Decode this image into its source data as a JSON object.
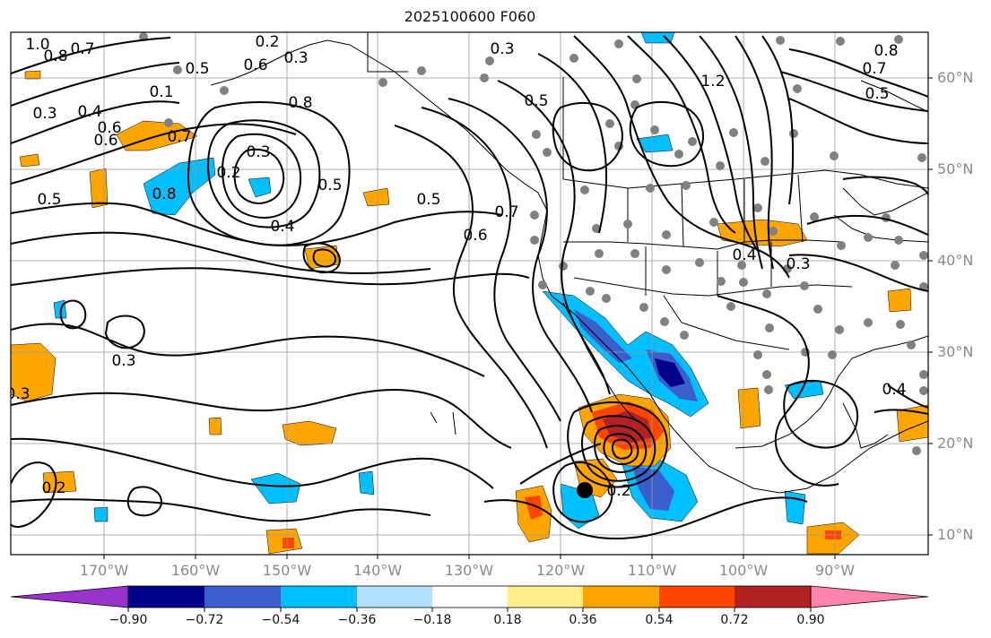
{
  "title": "2025100600 F060",
  "lat_labels": [
    "60°N",
    "50°N",
    "40°N",
    "30°N",
    "20°N",
    "10°N"
  ],
  "lon_labels": [
    "170°W",
    "160°W",
    "150°W",
    "140°W",
    "130°W",
    "120°W",
    "110°W",
    "100°W",
    "90°W"
  ],
  "colorbar": {
    "ticks": [
      "−0.90",
      "−0.72",
      "−0.54",
      "−0.36",
      "−0.18",
      "0.18",
      "0.36",
      "0.54",
      "0.72",
      "0.90"
    ],
    "colors": [
      "#9a32cd",
      "#00008b",
      "#3a5fcd",
      "#00bfff",
      "#b0e2ff",
      "#ffffff",
      "#ffec8b",
      "#ffa500",
      "#ff4500",
      "#b22222",
      "#ff83aa"
    ]
  },
  "contour_labels": [
    "1.0",
    "0.8",
    "0.7",
    "0.2",
    "0.3",
    "0.6",
    "0.5",
    "0.8",
    "0.7",
    "0.6",
    "0.3",
    "0.4",
    "0.6",
    "0.1",
    "0.3",
    "0.2",
    "0.8",
    "0.5",
    "0.4",
    "0.5",
    "0.7",
    "0.6",
    "0.5",
    "0.3",
    "0.5",
    "0.3",
    "0.3",
    "0.2",
    "0.7",
    "0.2",
    "0.3",
    "1.2",
    "0.4",
    "0.5",
    "0.4",
    "0.8"
  ],
  "colors": {
    "axis_text": "#8a8a8a",
    "grid": "#999999",
    "contour": "#000000",
    "station": "#808080"
  }
}
